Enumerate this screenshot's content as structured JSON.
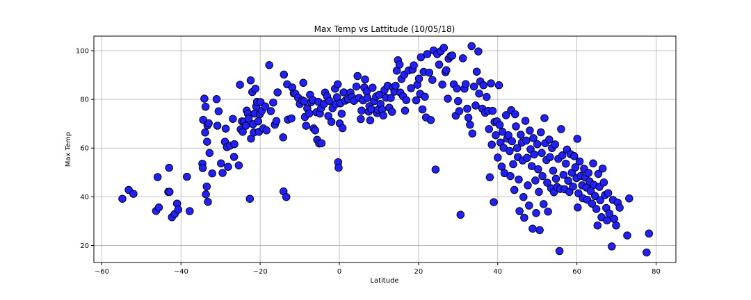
{
  "chart_data": {
    "type": "scatter",
    "title": "Max Temp vs Lattitude (10/05/18)",
    "xlabel": "Latitude",
    "ylabel": "Max Temp",
    "xlim": [
      -62,
      85
    ],
    "ylim": [
      13,
      106
    ],
    "xticks": [
      -60,
      -40,
      -20,
      0,
      20,
      40,
      60,
      80
    ],
    "yticks": [
      20,
      40,
      60,
      80,
      100
    ],
    "xtick_labels": [
      "−60",
      "−40",
      "−20",
      "0",
      "20",
      "40",
      "60",
      "80"
    ],
    "ytick_labels": [
      "20",
      "40",
      "60",
      "80",
      "100"
    ],
    "grid": true,
    "marker_color": "#1f1fff",
    "marker_edge_color": "#000000",
    "grid_color": "#b0b0b0",
    "points": [
      [
        -54.8,
        39.2
      ],
      [
        -53.2,
        42.8
      ],
      [
        -52.0,
        41.2
      ],
      [
        -46.3,
        34.2
      ],
      [
        -45.9,
        48.1
      ],
      [
        -45.6,
        35.6
      ],
      [
        -43.2,
        42.0
      ],
      [
        -43.0,
        51.9
      ],
      [
        -42.9,
        42.0
      ],
      [
        -42.3,
        31.6
      ],
      [
        -41.6,
        32.9
      ],
      [
        -41.0,
        37.2
      ],
      [
        -40.7,
        34.7
      ],
      [
        -38.5,
        48.2
      ],
      [
        -37.8,
        34.1
      ],
      [
        -34.6,
        53.6
      ],
      [
        -34.5,
        51.8
      ],
      [
        -34.4,
        71.6
      ],
      [
        -34.1,
        80.3
      ],
      [
        -33.9,
        66.4
      ],
      [
        -33.8,
        77.0
      ],
      [
        -33.7,
        41.0
      ],
      [
        -33.5,
        44.2
      ],
      [
        -33.4,
        62.6
      ],
      [
        -33.3,
        69.3
      ],
      [
        -33.2,
        37.9
      ],
      [
        -33.0,
        70.2
      ],
      [
        -32.8,
        58.0
      ],
      [
        -32.1,
        49.6
      ],
      [
        -31.0,
        80.1
      ],
      [
        -30.8,
        69.2
      ],
      [
        -30.5,
        75.1
      ],
      [
        -29.9,
        53.7
      ],
      [
        -29.5,
        49.8
      ],
      [
        -28.9,
        62.6
      ],
      [
        -28.7,
        68.0
      ],
      [
        -28.4,
        60.4
      ],
      [
        -28.1,
        52.3
      ],
      [
        -27.6,
        61.0
      ],
      [
        -26.9,
        72.0
      ],
      [
        -26.6,
        56.4
      ],
      [
        -26.5,
        61.6
      ],
      [
        -25.4,
        52.9
      ],
      [
        -25.1,
        86.0
      ],
      [
        -24.9,
        67.7
      ],
      [
        -24.6,
        71.0
      ],
      [
        -24.4,
        66.7
      ],
      [
        -24.1,
        70.8
      ],
      [
        -23.6,
        69.2
      ],
      [
        -23.4,
        75.4
      ],
      [
        -23.1,
        74.1
      ],
      [
        -22.9,
        72.1
      ],
      [
        -22.6,
        39.2
      ],
      [
        -22.4,
        87.8
      ],
      [
        -22.3,
        63.9
      ],
      [
        -22.0,
        83.0
      ],
      [
        -21.8,
        69.8
      ],
      [
        -21.6,
        66.4
      ],
      [
        -21.4,
        74.2
      ],
      [
        -21.2,
        84.4
      ],
      [
        -21.0,
        77.1
      ],
      [
        -20.8,
        79.0
      ],
      [
        -20.5,
        71.0
      ],
      [
        -20.3,
        66.7
      ],
      [
        -20.1,
        73.9
      ],
      [
        -19.9,
        78.9
      ],
      [
        -19.6,
        75.3
      ],
      [
        -19.2,
        68.1
      ],
      [
        -18.7,
        77.1
      ],
      [
        -18.4,
        67.3
      ],
      [
        -17.7,
        94.1
      ],
      [
        -17.3,
        75.2
      ],
      [
        -16.7,
        78.7
      ],
      [
        -16.3,
        69.6
      ],
      [
        -15.9,
        71.1
      ],
      [
        -15.6,
        82.9
      ],
      [
        -14.2,
        64.4
      ],
      [
        -14.0,
        90.2
      ],
      [
        -14.1,
        42.2
      ],
      [
        -13.4,
        39.9
      ],
      [
        -13.2,
        86.2
      ],
      [
        -13.0,
        71.7
      ],
      [
        -12.1,
        72.2
      ],
      [
        -11.9,
        84.9
      ],
      [
        -11.5,
        82.5
      ],
      [
        -11.1,
        82.3
      ],
      [
        -10.4,
        80.7
      ],
      [
        -10.0,
        78.1
      ],
      [
        -9.4,
        79.6
      ],
      [
        -9.1,
        86.8
      ],
      [
        -8.9,
        79.2
      ],
      [
        -8.7,
        72.8
      ],
      [
        -8.4,
        69.2
      ],
      [
        -8.1,
        76.3
      ],
      [
        -7.6,
        74.2
      ],
      [
        -7.4,
        81.9
      ],
      [
        -7.1,
        78.9
      ],
      [
        -6.7,
        79.7
      ],
      [
        -6.5,
        68.1
      ],
      [
        -6.1,
        67.3
      ],
      [
        -5.8,
        74.7
      ],
      [
        -5.6,
        63.4
      ],
      [
        -5.3,
        79.0
      ],
      [
        -5.1,
        61.9
      ],
      [
        -4.9,
        74.2
      ],
      [
        -4.6,
        76.4
      ],
      [
        -4.5,
        62.0
      ],
      [
        -3.9,
        78.1
      ],
      [
        -3.6,
        82.8
      ],
      [
        -3.1,
        81.2
      ],
      [
        -2.8,
        73.2
      ],
      [
        -2.5,
        79.4
      ],
      [
        -2.0,
        70.8
      ],
      [
        -1.7,
        76.4
      ],
      [
        -1.1,
        84.4
      ],
      [
        -0.9,
        78.1
      ],
      [
        -0.6,
        80.9
      ],
      [
        -0.4,
        86.2
      ],
      [
        -0.3,
        54.2
      ],
      [
        -0.2,
        51.9
      ],
      [
        0.1,
        70.1
      ],
      [
        0.3,
        78.4
      ],
      [
        0.6,
        74.1
      ],
      [
        0.8,
        68.2
      ],
      [
        1.1,
        82.9
      ],
      [
        1.5,
        79.5
      ],
      [
        2.2,
        80.1
      ],
      [
        2.8,
        82.8
      ],
      [
        3.2,
        81.0
      ],
      [
        3.7,
        79.4
      ],
      [
        4.3,
        85.3
      ],
      [
        4.6,
        89.6
      ],
      [
        5.0,
        80.6
      ],
      [
        5.4,
        71.9
      ],
      [
        5.6,
        75.4
      ],
      [
        6.0,
        79.6
      ],
      [
        6.3,
        84.9
      ],
      [
        6.5,
        88.2
      ],
      [
        6.9,
        83.2
      ],
      [
        7.1,
        80.6
      ],
      [
        7.4,
        75.0
      ],
      [
        7.6,
        77.2
      ],
      [
        7.8,
        71.4
      ],
      [
        8.1,
        76.0
      ],
      [
        8.4,
        84.8
      ],
      [
        8.8,
        79.3
      ],
      [
        9.3,
        81.2
      ],
      [
        9.5,
        74.4
      ],
      [
        9.7,
        75.7
      ],
      [
        10.1,
        81.9
      ],
      [
        10.4,
        78.1
      ],
      [
        10.8,
        75.8
      ],
      [
        11.1,
        73.4
      ],
      [
        11.4,
        83.8
      ],
      [
        11.8,
        80.7
      ],
      [
        12.2,
        85.6
      ],
      [
        12.6,
        76.6
      ],
      [
        13.0,
        80.6
      ],
      [
        13.3,
        74.9
      ],
      [
        13.6,
        84.9
      ],
      [
        13.9,
        83.2
      ],
      [
        14.2,
        85.6
      ],
      [
        14.5,
        91.8
      ],
      [
        14.8,
        96.1
      ],
      [
        15.2,
        94.3
      ],
      [
        15.4,
        82.8
      ],
      [
        15.7,
        88.4
      ],
      [
        16.1,
        81.3
      ],
      [
        16.4,
        90.2
      ],
      [
        16.6,
        75.4
      ],
      [
        16.9,
        79.7
      ],
      [
        17.5,
        91.9
      ],
      [
        18.1,
        84.6
      ],
      [
        18.5,
        92.3
      ],
      [
        18.8,
        94.0
      ],
      [
        19.4,
        79.6
      ],
      [
        19.7,
        86.0
      ],
      [
        20.1,
        88.5
      ],
      [
        20.4,
        82.3
      ],
      [
        20.6,
        97.3
      ],
      [
        21.0,
        75.9
      ],
      [
        21.3,
        91.3
      ],
      [
        21.6,
        81.1
      ],
      [
        21.9,
        72.6
      ],
      [
        22.2,
        98.6
      ],
      [
        22.7,
        91.0
      ],
      [
        23.1,
        71.5
      ],
      [
        23.5,
        88.0
      ],
      [
        23.8,
        100.1
      ],
      [
        24.3,
        51.2
      ],
      [
        24.7,
        98.6
      ],
      [
        25.2,
        94.3
      ],
      [
        25.6,
        99.8
      ],
      [
        26.0,
        86.1
      ],
      [
        26.4,
        101.2
      ],
      [
        26.8,
        91.2
      ],
      [
        27.0,
        92.0
      ],
      [
        27.4,
        80.3
      ],
      [
        27.6,
        96.7
      ],
      [
        28.1,
        97.8
      ],
      [
        28.5,
        98.0
      ],
      [
        28.9,
        86.2
      ],
      [
        29.4,
        73.3
      ],
      [
        29.7,
        84.5
      ],
      [
        30.0,
        79.3
      ],
      [
        30.3,
        75.2
      ],
      [
        30.6,
        32.6
      ],
      [
        31.2,
        96.9
      ],
      [
        31.6,
        84.4
      ],
      [
        31.9,
        86.3
      ],
      [
        32.3,
        76.2
      ],
      [
        32.6,
        72.5
      ],
      [
        33.0,
        69.6
      ],
      [
        33.4,
        101.9
      ],
      [
        33.6,
        66.0
      ],
      [
        34.0,
        85.3
      ],
      [
        34.4,
        77.5
      ],
      [
        34.7,
        91.4
      ],
      [
        35.1,
        99.7
      ],
      [
        35.3,
        82.4
      ],
      [
        35.6,
        87.4
      ],
      [
        36.1,
        76.2
      ],
      [
        36.4,
        85.8
      ],
      [
        36.8,
        74.5
      ],
      [
        37.2,
        81.0
      ],
      [
        37.6,
        75.3
      ],
      [
        37.8,
        67.8
      ],
      [
        38.0,
        48.0
      ],
      [
        38.3,
        86.6
      ],
      [
        38.5,
        61.4
      ],
      [
        38.7,
        75.3
      ],
      [
        39.0,
        37.8
      ],
      [
        39.2,
        70.7
      ],
      [
        39.5,
        65.3
      ],
      [
        39.8,
        71.0
      ],
      [
        40.0,
        56.1
      ],
      [
        40.3,
        85.8
      ],
      [
        40.5,
        69.5
      ],
      [
        40.7,
        62.3
      ],
      [
        41.0,
        52.4
      ],
      [
        41.2,
        66.7
      ],
      [
        41.5,
        60.1
      ],
      [
        41.7,
        49.7
      ],
      [
        42.1,
        73.5
      ],
      [
        42.4,
        63.9
      ],
      [
        42.7,
        65.3
      ],
      [
        43.0,
        58.8
      ],
      [
        43.2,
        48.5
      ],
      [
        43.4,
        75.6
      ],
      [
        43.6,
        62.8
      ],
      [
        43.9,
        53.4
      ],
      [
        44.2,
        42.8
      ],
      [
        44.4,
        73.9
      ],
      [
        44.6,
        68.9
      ],
      [
        44.9,
        60.0
      ],
      [
        45.1,
        56.3
      ],
      [
        45.3,
        47.1
      ],
      [
        45.5,
        34.1
      ],
      [
        45.8,
        65.5
      ],
      [
        46.1,
        62.3
      ],
      [
        46.3,
        54.9
      ],
      [
        46.5,
        39.9
      ],
      [
        46.7,
        31.4
      ],
      [
        47.0,
        71.2
      ],
      [
        47.2,
        63.1
      ],
      [
        47.4,
        56.0
      ],
      [
        47.6,
        44.7
      ],
      [
        47.9,
        36.4
      ],
      [
        48.1,
        67.2
      ],
      [
        48.3,
        59.5
      ],
      [
        48.6,
        52.6
      ],
      [
        48.8,
        26.9
      ],
      [
        49.0,
        64.1
      ],
      [
        49.2,
        57.4
      ],
      [
        49.5,
        46.7
      ],
      [
        49.7,
        33.3
      ],
      [
        50.0,
        61.6
      ],
      [
        50.2,
        51.3
      ],
      [
        50.4,
        42.0
      ],
      [
        50.6,
        26.3
      ],
      [
        50.9,
        66.5
      ],
      [
        51.1,
        58.0
      ],
      [
        51.3,
        48.5
      ],
      [
        51.6,
        37.0
      ],
      [
        51.8,
        72.3
      ],
      [
        52.0,
        62.0
      ],
      [
        52.3,
        55.1
      ],
      [
        52.5,
        45.8
      ],
      [
        52.7,
        33.9
      ],
      [
        53.0,
        63.5
      ],
      [
        53.2,
        56.3
      ],
      [
        53.5,
        43.5
      ],
      [
        53.7,
        60.0
      ],
      [
        54.0,
        50.7
      ],
      [
        54.2,
        41.9
      ],
      [
        54.5,
        61.5
      ],
      [
        54.7,
        47.4
      ],
      [
        55.0,
        44.0
      ],
      [
        55.3,
        55.6
      ],
      [
        55.6,
        17.7
      ],
      [
        55.8,
        43.2
      ],
      [
        56.0,
        67.8
      ],
      [
        56.3,
        57.0
      ],
      [
        56.6,
        49.0
      ],
      [
        56.9,
        43.1
      ],
      [
        57.2,
        53.6
      ],
      [
        57.5,
        59.4
      ],
      [
        57.8,
        46.6
      ],
      [
        58.1,
        42.0
      ],
      [
        58.4,
        57.5
      ],
      [
        58.7,
        49.9
      ],
      [
        59.0,
        44.2
      ],
      [
        59.3,
        56.7
      ],
      [
        59.6,
        52.1
      ],
      [
        59.9,
        47.7
      ],
      [
        60.1,
        63.8
      ],
      [
        60.2,
        35.6
      ],
      [
        60.4,
        41.4
      ],
      [
        60.7,
        54.5
      ],
      [
        61.0,
        48.6
      ],
      [
        61.3,
        44.7
      ],
      [
        61.5,
        39.4
      ],
      [
        61.8,
        51.5
      ],
      [
        62.1,
        47.9
      ],
      [
        62.4,
        43.8
      ],
      [
        62.6,
        38.8
      ],
      [
        62.9,
        49.8
      ],
      [
        63.2,
        46.3
      ],
      [
        63.5,
        42.3
      ],
      [
        63.8,
        37.2
      ],
      [
        64.1,
        53.7
      ],
      [
        64.3,
        44.9
      ],
      [
        64.6,
        40.3
      ],
      [
        64.9,
        35.0
      ],
      [
        65.2,
        28.2
      ],
      [
        65.4,
        49.4
      ],
      [
        65.7,
        44.1
      ],
      [
        65.9,
        38.6
      ],
      [
        66.2,
        31.6
      ],
      [
        66.5,
        51.6
      ],
      [
        66.8,
        45.9
      ],
      [
        67.1,
        40.7
      ],
      [
        67.4,
        35.4
      ],
      [
        67.6,
        30.3
      ],
      [
        67.9,
        41.5
      ],
      [
        68.2,
        33.1
      ],
      [
        68.8,
        19.6
      ],
      [
        69.1,
        38.7
      ],
      [
        69.4,
        30.9
      ],
      [
        69.9,
        28.2
      ],
      [
        70.3,
        37.6
      ],
      [
        70.8,
        35.5
      ],
      [
        72.7,
        24.1
      ],
      [
        73.2,
        39.3
      ],
      [
        77.6,
        17.1
      ],
      [
        78.2,
        24.9
      ]
    ]
  }
}
